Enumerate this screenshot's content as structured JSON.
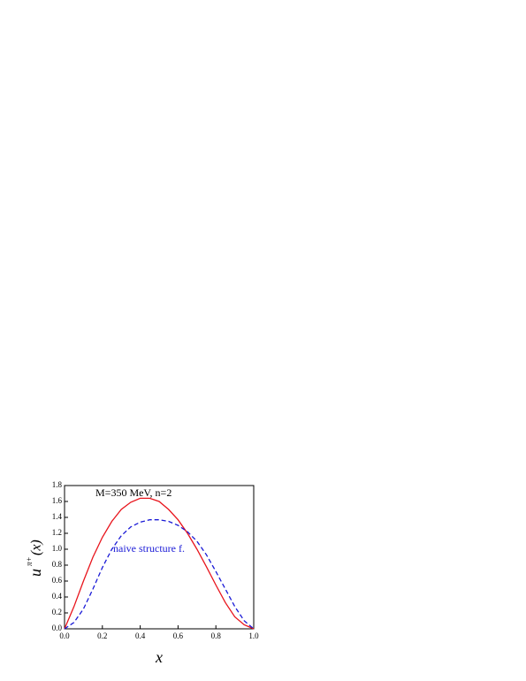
{
  "chart_data": {
    "type": "line",
    "title": "M=350 MeV, n=2",
    "x_label": "x",
    "y_label": {
      "base": "u",
      "sup": "π+",
      "arg": "(x)"
    },
    "annotations": [
      "naive structure f."
    ],
    "x": [
      0,
      0.05,
      0.1,
      0.15,
      0.2,
      0.25,
      0.3,
      0.35,
      0.4,
      0.45,
      0.5,
      0.55,
      0.6,
      0.65,
      0.7,
      0.75,
      0.8,
      0.85,
      0.9,
      0.95,
      1.0
    ],
    "series": [
      {
        "color": "#e8141c",
        "dash": false,
        "values": [
          0,
          0.28,
          0.6,
          0.9,
          1.15,
          1.35,
          1.5,
          1.59,
          1.64,
          1.64,
          1.6,
          1.5,
          1.37,
          1.2,
          1.0,
          0.78,
          0.55,
          0.33,
          0.15,
          0.05,
          0
        ]
      },
      {
        "color": "#1a1ad6",
        "dash": true,
        "values": [
          0,
          0.08,
          0.25,
          0.5,
          0.77,
          1.0,
          1.17,
          1.28,
          1.34,
          1.37,
          1.37,
          1.35,
          1.3,
          1.22,
          1.1,
          0.93,
          0.72,
          0.5,
          0.28,
          0.1,
          0
        ]
      }
    ],
    "xlim": [
      0,
      1.0
    ],
    "ylim": [
      0,
      1.8
    ],
    "xticks": [
      {
        "value": 0,
        "label": "0.0"
      },
      {
        "value": 0.2,
        "label": "0.2"
      },
      {
        "value": 0.4,
        "label": "0.4"
      },
      {
        "value": 0.6,
        "label": "0.6"
      },
      {
        "value": 0.8,
        "label": "0.8"
      },
      {
        "value": 1.0,
        "label": "1.0"
      }
    ],
    "yticks": [
      {
        "value": 0,
        "label": "0.0"
      },
      {
        "value": 0.2,
        "label": "0.2"
      },
      {
        "value": 0.4,
        "label": "0.4"
      },
      {
        "value": 0.6,
        "label": "0.6"
      },
      {
        "value": 0.8,
        "label": "0.8"
      },
      {
        "value": 1.0,
        "label": "1.0"
      },
      {
        "value": 1.2,
        "label": "1.2"
      },
      {
        "value": 1.4,
        "label": "1.4"
      },
      {
        "value": 1.6,
        "label": "1.6"
      },
      {
        "value": 1.8,
        "label": "1.8"
      }
    ]
  }
}
